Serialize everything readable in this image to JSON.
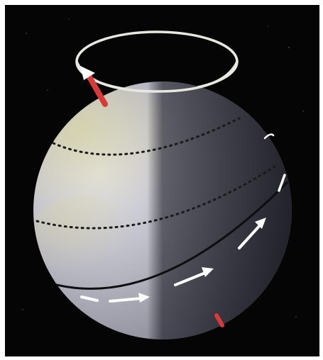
{
  "diagram": {
    "description_labels": [],
    "colors": {
      "background": "#050505",
      "sphere_light": "#d8d8e0",
      "sphere_land": "#c9c79a",
      "sphere_dark": "#23232c",
      "orbit_ring": "#e8e8e0",
      "spin_arrow": "#ffffff",
      "axis_arrow": "#d83a3a",
      "latitude_dots": "#1a1a1a"
    },
    "icons": {
      "precession_ring": "precession-circle-icon",
      "axis_north": "axis-arrow-north-icon",
      "axis_south": "axis-arrow-south-icon",
      "rotation_arrows": "rotation-arrow-icon"
    }
  }
}
